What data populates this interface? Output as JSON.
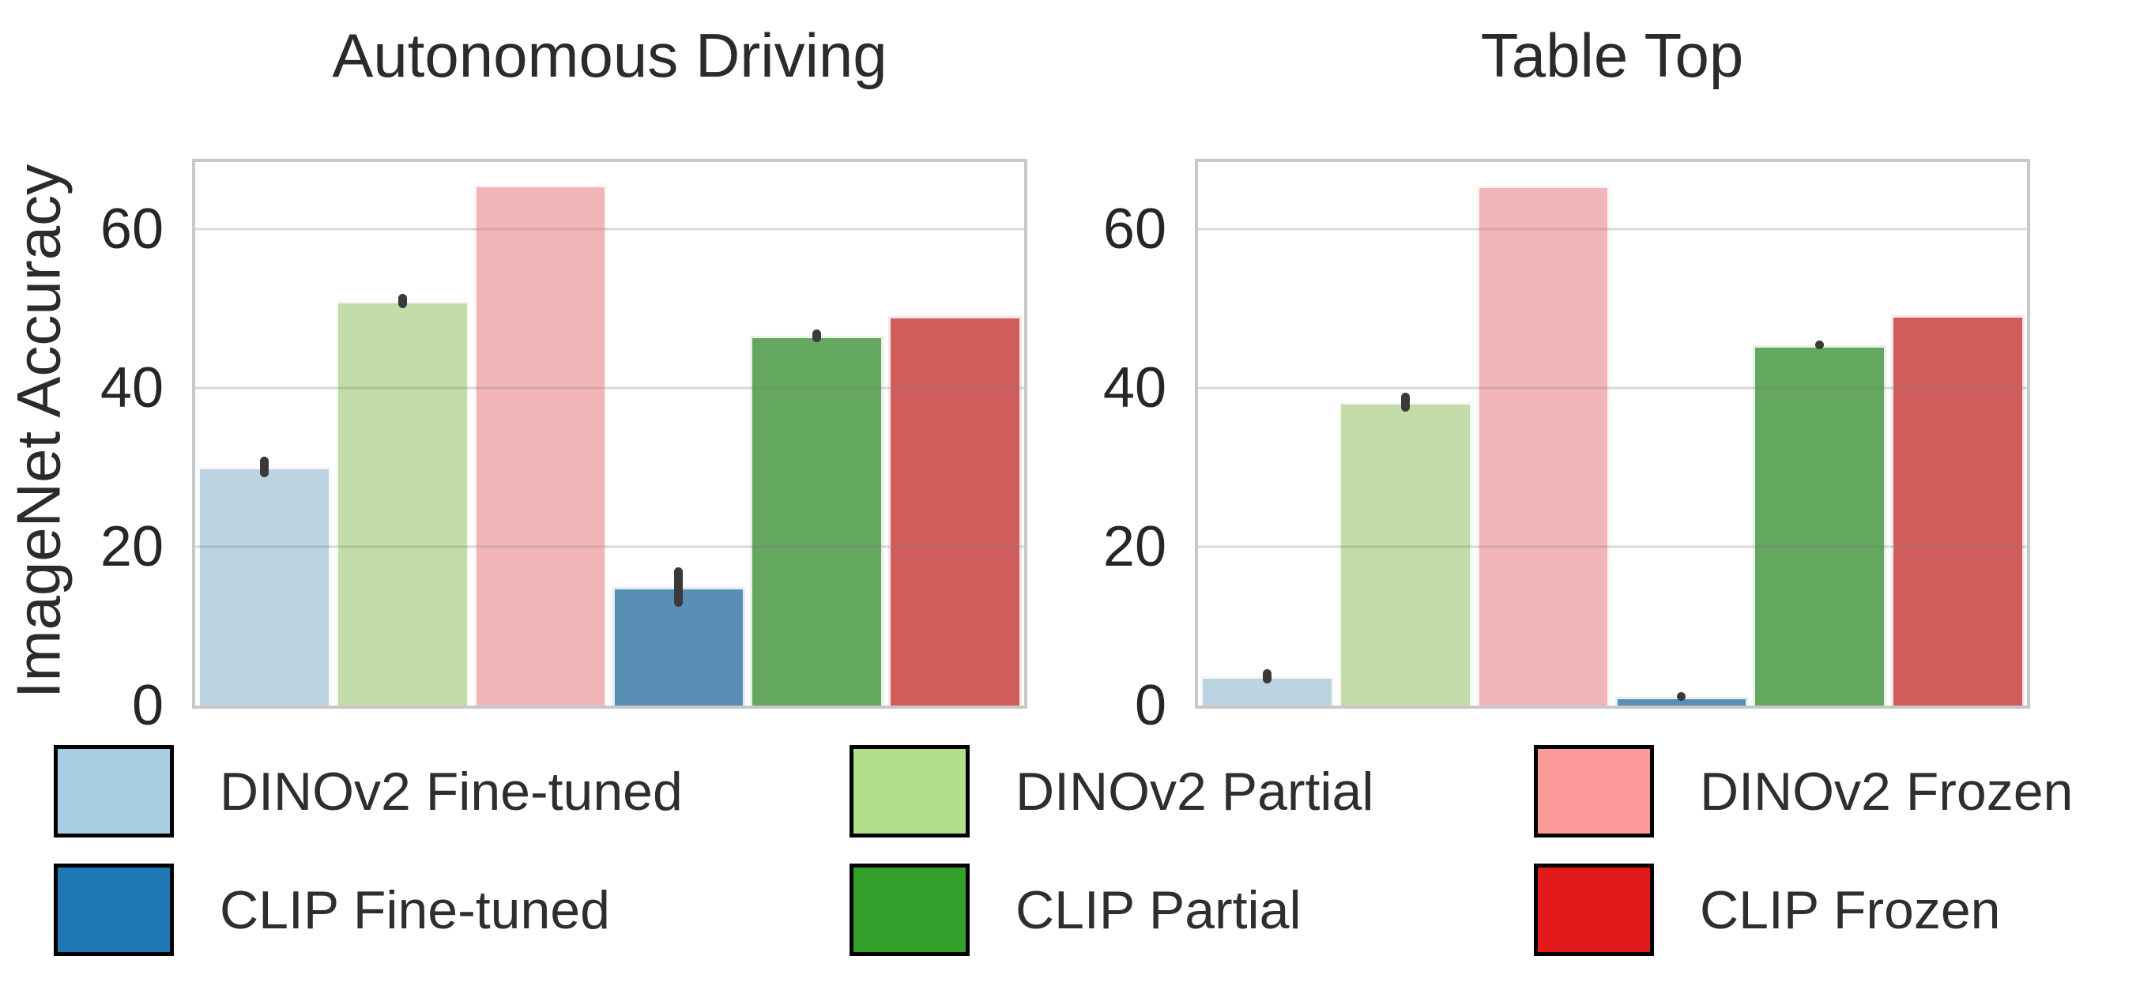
{
  "figure": {
    "background": "#ffffff",
    "ylabel": "ImageNet Accuracy"
  },
  "chart_data": [
    {
      "type": "bar",
      "title": "Autonomous Driving",
      "xlabel": "",
      "ylabel": "ImageNet Accuracy",
      "ylim": [
        0,
        68.5
      ],
      "yticks": [
        0,
        20,
        40,
        60
      ],
      "grid": true,
      "legend_position": "below",
      "categories": [
        "DINOv2 Fine-tuned",
        "DINOv2 Partial",
        "DINOv2 Frozen",
        "CLIP Fine-tuned",
        "CLIP Partial",
        "CLIP Frozen"
      ],
      "values": [
        30.1,
        51.0,
        65.6,
        14.9,
        46.6,
        49.1
      ],
      "errors": [
        1.3,
        0.9,
        0,
        2.5,
        0.8,
        0
      ]
    },
    {
      "type": "bar",
      "title": "Table Top",
      "xlabel": "",
      "ylabel": "ImageNet Accuracy",
      "ylim": [
        0,
        68.5
      ],
      "yticks": [
        0,
        20,
        40,
        60
      ],
      "grid": true,
      "legend_position": "below",
      "categories": [
        "DINOv2 Fine-tuned",
        "DINOv2 Partial",
        "DINOv2 Frozen",
        "CLIP Fine-tuned",
        "CLIP Partial",
        "CLIP Frozen"
      ],
      "values": [
        3.7,
        38.2,
        65.5,
        1.1,
        45.4,
        49.2
      ],
      "errors": [
        0.9,
        1.2,
        0,
        0.5,
        0.5,
        0
      ]
    }
  ],
  "legend": {
    "columns": [
      {
        "items": [
          {
            "label": "DINOv2 Fine-tuned",
            "color": "#a6cee3"
          },
          {
            "label": "CLIP Fine-tuned",
            "color": "#1f78b4"
          }
        ]
      },
      {
        "items": [
          {
            "label": "DINOv2 Partial",
            "color": "#b2df8a"
          },
          {
            "label": "CLIP Partial",
            "color": "#33a02c"
          }
        ]
      },
      {
        "items": [
          {
            "label": "DINOv2 Frozen",
            "color": "#fb9a99"
          },
          {
            "label": "CLIP Frozen",
            "color": "#e31a1c"
          }
        ]
      }
    ]
  },
  "colors": {
    "bar_fills": [
      "#bcd3e2",
      "#c3dcaa",
      "#f2b6b8",
      "#598eb5",
      "#64a75f",
      "#d05d5c"
    ],
    "gridline": "#d9d9d9",
    "plot_border": "#c8c8c8",
    "error_bar": "#3a3a3a",
    "text": "#262626"
  }
}
